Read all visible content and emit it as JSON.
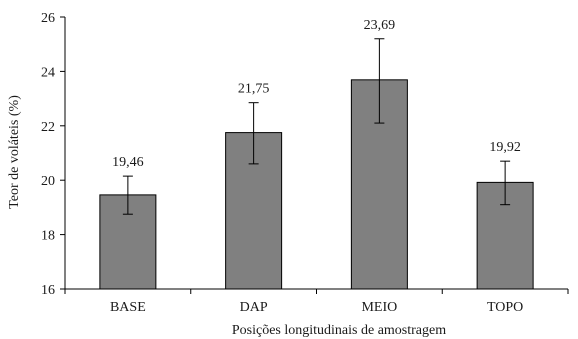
{
  "chart_data": {
    "type": "bar",
    "xlabel": "Posições longitudinais de amostragem",
    "ylabel": "Teor de voláteis (%)",
    "categories": [
      "BASE",
      "DAP",
      "MEIO",
      "TOPO"
    ],
    "values": [
      19.46,
      21.75,
      23.69,
      19.92
    ],
    "value_labels": [
      "19,46",
      "21,75",
      "23,69",
      "19,92"
    ],
    "error_bars": [
      {
        "low": 18.75,
        "high": 20.15
      },
      {
        "low": 20.6,
        "high": 22.85
      },
      {
        "low": 22.1,
        "high": 25.2
      },
      {
        "low": 19.1,
        "high": 20.7
      }
    ],
    "ylim": [
      16,
      26
    ],
    "yticks": [
      16,
      18,
      20,
      22,
      24,
      26
    ],
    "grid": false,
    "legend": "none",
    "bar_color": "#808080",
    "bar_edge_color": "#000000"
  }
}
